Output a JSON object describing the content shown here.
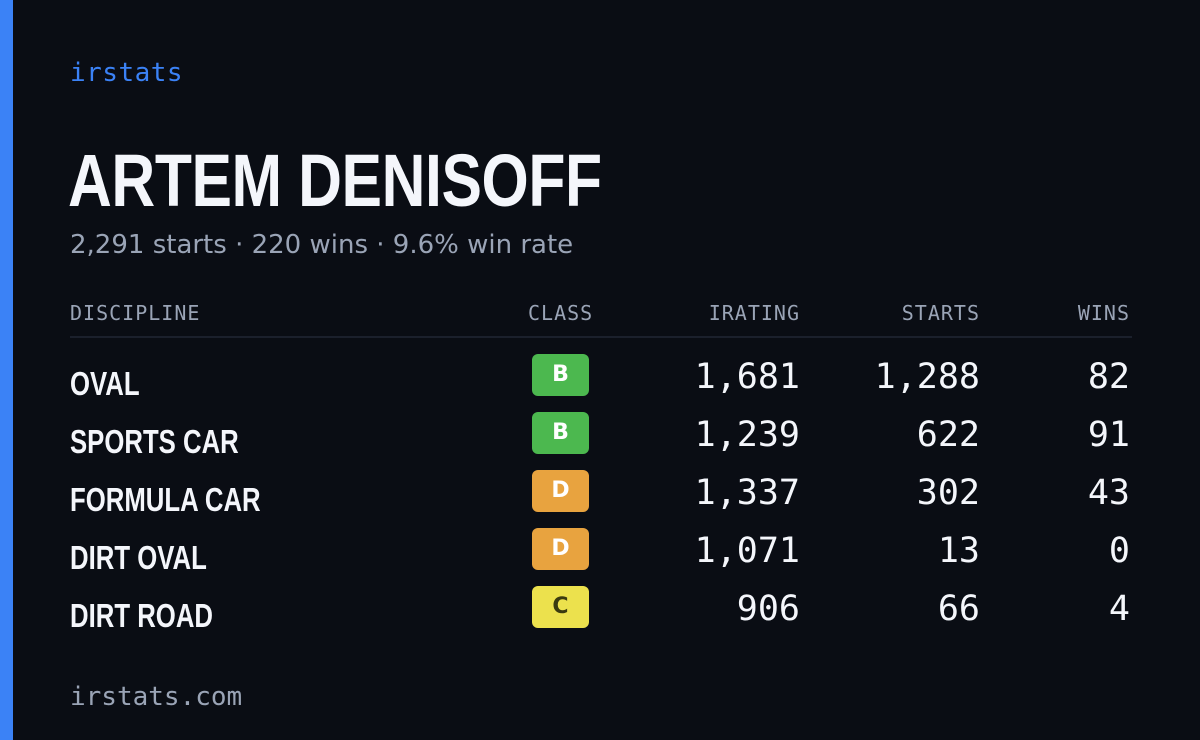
{
  "brand": "irstats",
  "driver": {
    "name": "ARTEM DENISOFF",
    "summary": "2,291 starts · 220 wins · 9.6% win rate"
  },
  "table": {
    "headers": {
      "discipline": "DISCIPLINE",
      "class": "CLASS",
      "irating": "IRATING",
      "starts": "STARTS",
      "wins": "WINS"
    },
    "rows": [
      {
        "discipline": "OVAL",
        "class": "B",
        "class_color": "#4cb84f",
        "irating": "1,681",
        "starts": "1,288",
        "wins": "82"
      },
      {
        "discipline": "SPORTS CAR",
        "class": "B",
        "class_color": "#4cb84f",
        "irating": "1,239",
        "starts": "622",
        "wins": "91"
      },
      {
        "discipline": "FORMULA CAR",
        "class": "D",
        "class_color": "#e8a33f",
        "irating": "1,337",
        "starts": "302",
        "wins": "43"
      },
      {
        "discipline": "DIRT OVAL",
        "class": "D",
        "class_color": "#e8a33f",
        "irating": "1,071",
        "starts": "13",
        "wins": "0"
      },
      {
        "discipline": "DIRT ROAD",
        "class": "C",
        "class_color": "#ece14d",
        "irating": "906",
        "starts": "66",
        "wins": "4"
      }
    ]
  },
  "footer": "irstats.com",
  "colors": {
    "accent": "#3b82f6",
    "background": "#0a0d14"
  }
}
